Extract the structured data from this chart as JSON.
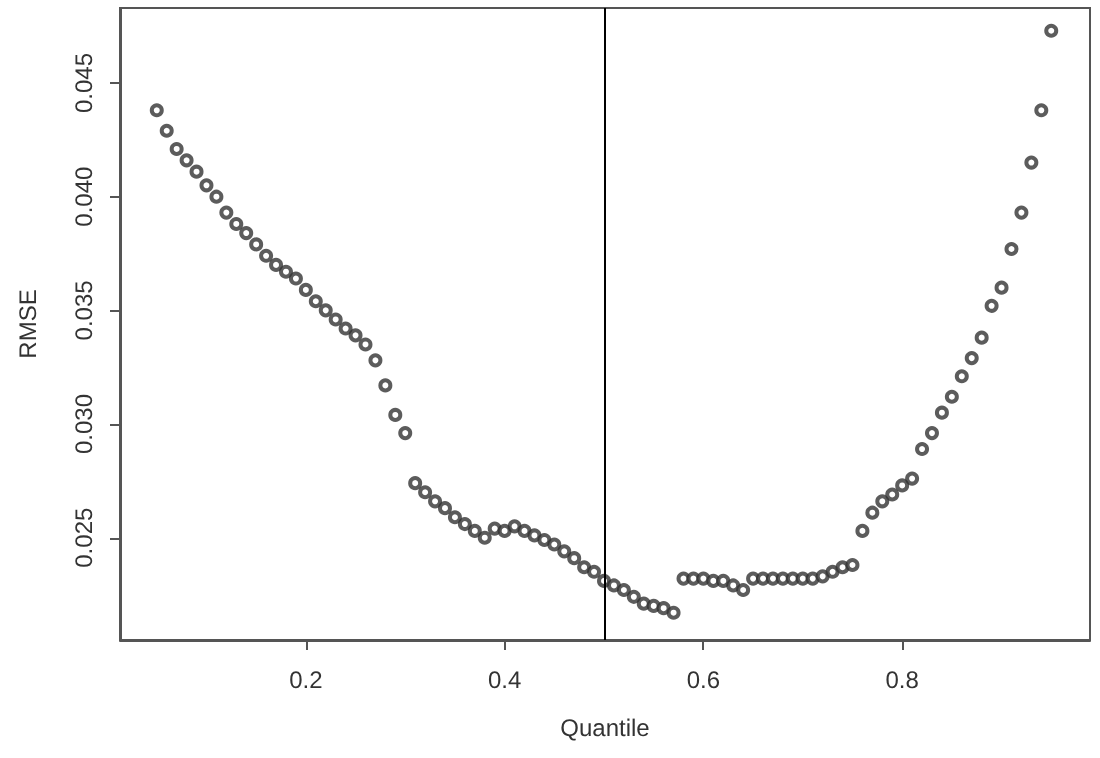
{
  "chart_data": {
    "type": "scatter",
    "xlabel": "Quantile",
    "ylabel": "RMSE",
    "x": [
      0.05,
      0.06,
      0.07,
      0.08,
      0.09,
      0.1,
      0.11,
      0.12,
      0.13,
      0.14,
      0.15,
      0.16,
      0.17,
      0.18,
      0.19,
      0.2,
      0.21,
      0.22,
      0.23,
      0.24,
      0.25,
      0.26,
      0.27,
      0.28,
      0.29,
      0.3,
      0.31,
      0.32,
      0.33,
      0.34,
      0.35,
      0.36,
      0.37,
      0.38,
      0.39,
      0.4,
      0.41,
      0.42,
      0.43,
      0.44,
      0.45,
      0.46,
      0.47,
      0.48,
      0.49,
      0.5,
      0.51,
      0.52,
      0.53,
      0.54,
      0.55,
      0.56,
      0.57,
      0.58,
      0.59,
      0.6,
      0.61,
      0.62,
      0.63,
      0.64,
      0.65,
      0.66,
      0.67,
      0.68,
      0.69,
      0.7,
      0.71,
      0.72,
      0.73,
      0.74,
      0.75,
      0.76,
      0.77,
      0.78,
      0.79,
      0.8,
      0.81,
      0.82,
      0.83,
      0.84,
      0.85,
      0.86,
      0.87,
      0.88,
      0.89,
      0.9,
      0.91,
      0.92,
      0.93,
      0.94,
      0.95
    ],
    "series": [
      {
        "color": "#333333",
        "values": [
          0.0438,
          0.0429,
          0.0421,
          0.0416,
          0.0411,
          0.0405,
          0.04,
          0.0393,
          0.0388,
          0.0384,
          0.0379,
          0.0374,
          0.037,
          0.0367,
          0.0364,
          0.0359,
          0.0354,
          0.035,
          0.0346,
          0.0342,
          0.0339,
          0.0335,
          0.0328,
          0.0317,
          0.0304,
          0.0296,
          0.0274,
          0.027,
          0.0266,
          0.0263,
          0.0259,
          0.0256,
          0.0253,
          0.025,
          0.0254,
          0.0253,
          0.0255,
          0.0253,
          0.0251,
          0.0249,
          0.0247,
          0.0244,
          0.0241,
          0.0237,
          0.0235,
          0.0231,
          0.0229,
          0.0227,
          0.0224,
          0.0221,
          0.022,
          0.0219,
          0.0217,
          0.0232,
          0.0232,
          0.0232,
          0.0231,
          0.0231,
          0.0229,
          0.0227,
          0.0232,
          0.0232,
          0.0232,
          0.0232,
          0.0232,
          0.0232,
          0.0232,
          0.0233,
          0.0235,
          0.0237,
          0.0238,
          0.0253,
          0.0261,
          0.0266,
          0.0269,
          0.0273,
          0.0276,
          0.0289,
          0.0296,
          0.0305,
          0.0312,
          0.0321,
          0.0329,
          0.0338,
          0.0352,
          0.036,
          0.0377,
          0.0393,
          0.0415,
          0.0438,
          0.0473
        ]
      }
    ],
    "xlim": [
      0.013,
      0.989
    ],
    "ylim": [
      0.0205,
      0.0483
    ],
    "xticks": [
      0.2,
      0.4,
      0.6,
      0.8
    ],
    "yticks": [
      0.025,
      {
        "value": 0.03,
        "label": "0.030"
      },
      0.035,
      {
        "value": 0.04,
        "label": "0.040"
      },
      0.045
    ],
    "ref_lines": [
      {
        "axis": "x",
        "value": 0.5,
        "color": "#000000"
      }
    ],
    "marker": "circle",
    "grid": false
  }
}
